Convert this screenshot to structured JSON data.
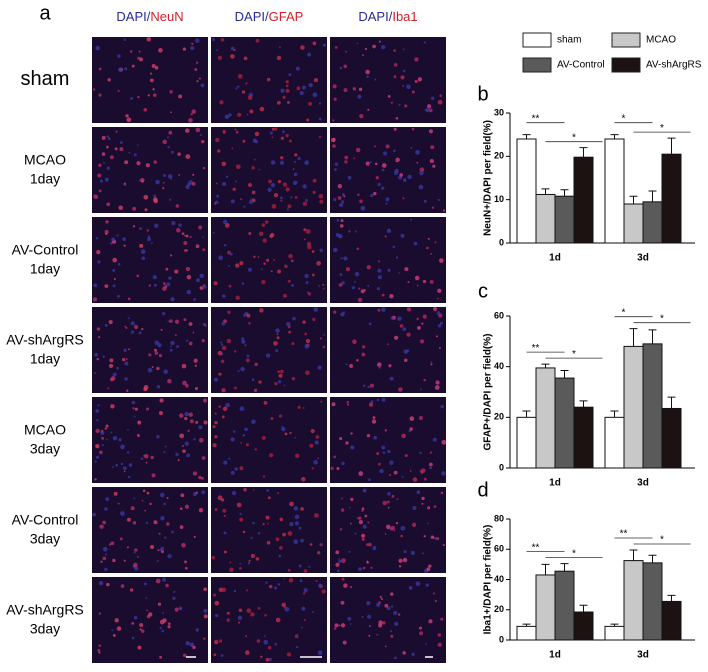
{
  "figure": {
    "panel": "a",
    "columns": [
      {
        "prefix": "DAPI/",
        "marker": "NeuN"
      },
      {
        "prefix": "DAPI/",
        "marker": "GFAP"
      },
      {
        "prefix": "DAPI/",
        "marker": "Iba1"
      }
    ],
    "rows": [
      [
        "sham"
      ],
      [
        "MCAO",
        "1day"
      ],
      [
        "AV-Control",
        "1day"
      ],
      [
        "AV-shArgRS",
        "1day"
      ],
      [
        "MCAO",
        "3day"
      ],
      [
        "AV-Control",
        "3day"
      ],
      [
        "AV-shArgRS",
        "3day"
      ]
    ]
  },
  "chart_data": [
    {
      "type": "bar",
      "panel": "b",
      "ylabel": "NeuN+/DAPI per field(%)",
      "categories": [
        "1d",
        "3d"
      ],
      "ylim": [
        0,
        30
      ],
      "yticks": [
        0,
        10,
        20,
        30
      ],
      "significance": [
        [
          "**",
          "*"
        ],
        [
          "*",
          "*"
        ]
      ],
      "series": [
        {
          "name": "sham",
          "color": "#ffffff",
          "values": [
            24,
            24
          ],
          "errors": [
            1,
            1
          ]
        },
        {
          "name": "MCAO",
          "color": "#c8c8c8",
          "values": [
            11.2,
            9
          ],
          "errors": [
            1.3,
            1.8
          ]
        },
        {
          "name": "AV-Control",
          "color": "#5a5a5a",
          "values": [
            10.8,
            9.5
          ],
          "errors": [
            1.5,
            2.5
          ]
        },
        {
          "name": "AV-shArgRS",
          "color": "#1c1212",
          "values": [
            19.8,
            20.5
          ],
          "errors": [
            2.2,
            3.7
          ]
        }
      ]
    },
    {
      "type": "bar",
      "panel": "c",
      "ylabel": "GFAP+/DAPI per field(%)",
      "categories": [
        "1d",
        "3d"
      ],
      "ylim": [
        0,
        60
      ],
      "yticks": [
        0,
        20,
        40,
        60
      ],
      "significance": [
        [
          "**",
          "*"
        ],
        [
          "*",
          "*"
        ]
      ],
      "series": [
        {
          "color": "#ffffff",
          "values": [
            20,
            20
          ],
          "errors": [
            2.5,
            2.5
          ]
        },
        {
          "color": "#c8c8c8",
          "values": [
            39.5,
            48
          ],
          "errors": [
            1.5,
            7
          ]
        },
        {
          "color": "#5a5a5a",
          "values": [
            35.5,
            49
          ],
          "errors": [
            3,
            5.5
          ]
        },
        {
          "color": "#1c1212",
          "values": [
            24,
            23.5
          ],
          "errors": [
            2.5,
            4.5
          ]
        }
      ]
    },
    {
      "type": "bar",
      "panel": "d",
      "ylabel": "Iba1+/DAPI per field(%)",
      "categories": [
        "1d",
        "3d"
      ],
      "ylim": [
        0,
        80
      ],
      "yticks": [
        0,
        20,
        40,
        60,
        80
      ],
      "significance": [
        [
          "**",
          "*"
        ],
        [
          "**",
          "*"
        ]
      ],
      "series": [
        {
          "color": "#ffffff",
          "values": [
            9,
            9
          ],
          "errors": [
            1.5,
            1.5
          ]
        },
        {
          "color": "#c8c8c8",
          "values": [
            43,
            52.5
          ],
          "errors": [
            7,
            7
          ]
        },
        {
          "color": "#5a5a5a",
          "values": [
            45.5,
            51
          ],
          "errors": [
            5,
            5
          ]
        },
        {
          "color": "#1c1212",
          "values": [
            18.5,
            25.5
          ],
          "errors": [
            4.5,
            4
          ]
        }
      ]
    }
  ]
}
